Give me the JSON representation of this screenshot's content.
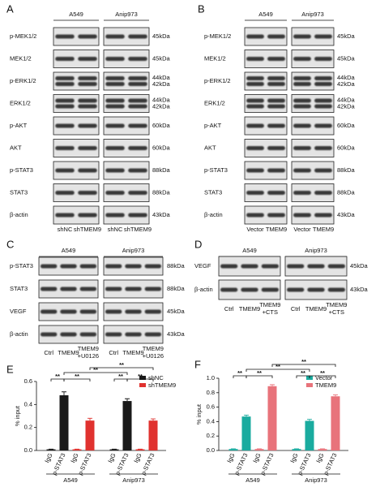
{
  "panels": [
    {
      "letter": "A",
      "cells": [
        "A549",
        "Anip973"
      ],
      "rows": [
        "p-MEK1/2",
        "MEK1/2",
        "p-ERK1/2",
        "ERK1/2",
        "p-AKT",
        "AKT",
        "p-STAT3",
        "STAT3",
        "β-actin"
      ],
      "sizes": [
        "45kDa",
        "45kDa",
        [
          "44kDa",
          "42kDa"
        ],
        [
          "44kDa",
          "42kDa"
        ],
        "60kDa",
        "60kDa",
        "88kDa",
        "88kDa",
        "43kDa"
      ],
      "lanes": [
        "shNC",
        "shTMEM9"
      ]
    },
    {
      "letter": "B",
      "cells": [
        "A549",
        "Anip973"
      ],
      "rows": [
        "p-MEK1/2",
        "MEK1/2",
        "p-ERK1/2",
        "ERK1/2",
        "p-AKT",
        "AKT",
        "p-STAT3",
        "STAT3",
        "β-actin"
      ],
      "sizes": [
        "45kDa",
        "45kDa",
        [
          "44kDa",
          "42kDa"
        ],
        [
          "44kDa",
          "42kDa"
        ],
        "60kDa",
        "60kDa",
        "88kDa",
        "88kDa",
        "43kDa"
      ],
      "lanes": [
        "Vector",
        "TMEM9"
      ]
    },
    {
      "letter": "C",
      "cells": [
        "A549",
        "Anip973"
      ],
      "rows": [
        "p-STAT3",
        "STAT3",
        "VEGF",
        "β-actin"
      ],
      "sizes": [
        "88kDa",
        "88kDa",
        "45kDa",
        "43kDa"
      ],
      "lanes": [
        "Ctrl",
        "TMEM9",
        [
          "TMEM9",
          "+U0126"
        ]
      ]
    },
    {
      "letter": "D",
      "cells": [
        "A549",
        "Anip973"
      ],
      "rows": [
        "VEGF",
        "β-actin"
      ],
      "sizes": [
        "45kDa",
        "43kDa"
      ],
      "lanes": [
        "Ctrl",
        "TMEM9",
        [
          "TMEM9",
          "+CTS"
        ]
      ]
    }
  ],
  "chart_data": [
    {
      "type": "bar",
      "label": "E",
      "categories": [
        "IgG",
        "p-STAT3",
        "IgG",
        "p-STAT3",
        "IgG",
        "p-STAT3",
        "IgG",
        "p-STAT3"
      ],
      "groups": [
        "A549",
        "Anip973"
      ],
      "ylabel": "% input",
      "ylim": [
        0,
        0.6
      ],
      "yticks": [
        {
          "value": 0,
          "label": "0.0"
        },
        0.2,
        0.4,
        0.6
      ],
      "legend": "upper right",
      "series": [
        {
          "name": "shNC",
          "color": "#1a1a1a",
          "values": [
            0.01,
            0.48,
            null,
            null,
            0.01,
            0.43,
            null,
            null
          ],
          "errors": [
            0.002,
            0.03,
            null,
            null,
            0.002,
            0.02,
            null,
            null
          ]
        },
        {
          "name": "shTMEM9",
          "color": "#e0322f",
          "values": [
            null,
            null,
            0.01,
            0.26,
            null,
            null,
            0.01,
            0.26
          ],
          "errors": [
            null,
            null,
            0.002,
            0.02,
            null,
            null,
            0.002,
            0.015
          ]
        }
      ],
      "annotations": [
        "**",
        "**",
        "**",
        "**",
        "**",
        "**"
      ]
    },
    {
      "type": "bar",
      "label": "F",
      "categories": [
        "IgG",
        "p-STAT3",
        "IgG",
        "p-STAT3",
        "IgG",
        "p-STAT3",
        "IgG",
        "p-STAT3"
      ],
      "groups": [
        "A549",
        "Anip973"
      ],
      "ylabel": "% input",
      "ylim": [
        0,
        1.0
      ],
      "yticks": [
        {
          "value": 0,
          "label": "0.0"
        },
        0.2,
        0.4,
        0.6,
        0.8,
        {
          "value": 1.0,
          "label": "1.0"
        }
      ],
      "legend": "upper right",
      "series": [
        {
          "name": "Vector",
          "color": "#1aab9f",
          "values": [
            0.02,
            0.47,
            null,
            null,
            0.02,
            0.41,
            null,
            null
          ],
          "errors": [
            0.003,
            0.02,
            null,
            null,
            0.003,
            0.02,
            null,
            null
          ]
        },
        {
          "name": "TMEM9",
          "color": "#e8737b",
          "values": [
            null,
            null,
            0.02,
            0.89,
            null,
            null,
            0.02,
            0.75
          ],
          "errors": [
            null,
            null,
            0.003,
            0.02,
            null,
            null,
            0.003,
            0.02
          ]
        }
      ],
      "annotations": [
        "**",
        "**",
        "**",
        "**",
        "**",
        "**"
      ]
    }
  ]
}
